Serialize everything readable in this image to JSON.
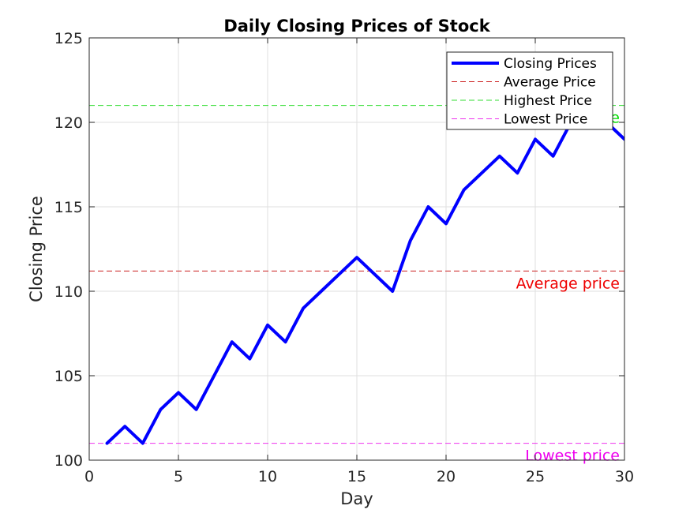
{
  "chart_data": {
    "type": "line",
    "title": "Daily Closing Prices of Stock",
    "xlabel": "Day",
    "ylabel": "Closing Price",
    "xlim": [
      0,
      30
    ],
    "ylim": [
      100,
      125
    ],
    "xticks": [
      0,
      5,
      10,
      15,
      20,
      25,
      30
    ],
    "yticks": [
      100,
      105,
      110,
      115,
      120,
      125
    ],
    "grid": true,
    "legend_position": "top-right",
    "series": [
      {
        "name": "Closing Prices",
        "color": "#0000ff",
        "x": [
          1,
          2,
          3,
          4,
          5,
          6,
          7,
          8,
          9,
          10,
          11,
          12,
          13,
          14,
          15,
          16,
          17,
          18,
          19,
          20,
          21,
          22,
          23,
          24,
          25,
          26,
          27,
          28,
          29,
          30
        ],
        "values": [
          101,
          102,
          101,
          103,
          104,
          103,
          105,
          107,
          106,
          108,
          107,
          109,
          110,
          111,
          112,
          111,
          110,
          113,
          115,
          114,
          116,
          117,
          118,
          117,
          119,
          118,
          120,
          121,
          120,
          119
        ]
      }
    ],
    "reference_lines": [
      {
        "name": "Average Price",
        "value": 111.2,
        "color": "#cc2222",
        "annotation": "Average price",
        "annotation_color": "#ee0000"
      },
      {
        "name": "Highest Price",
        "value": 121,
        "color": "#33dd33",
        "annotation": "Highest price",
        "annotation_color": "#00dd00"
      },
      {
        "name": "Lowest Price",
        "value": 101,
        "color": "#ee33ee",
        "annotation": "Lowest price",
        "annotation_color": "#ee00ee"
      }
    ]
  }
}
